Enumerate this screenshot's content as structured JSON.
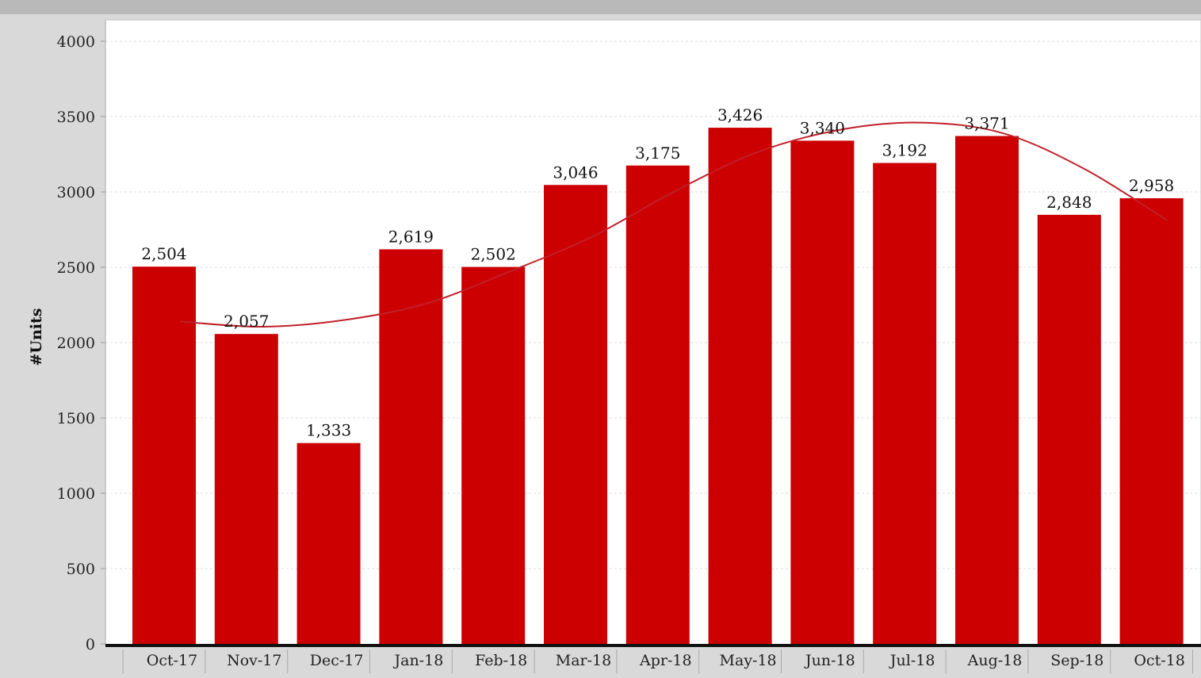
{
  "chart_data": {
    "type": "bar",
    "title": "",
    "xlabel": "",
    "ylabel": "#Units",
    "ylim": [
      0,
      4000
    ],
    "yticks": [
      0,
      500,
      1000,
      1500,
      2000,
      2500,
      3000,
      3500,
      4000
    ],
    "grid": true,
    "categories": [
      "Oct-17",
      "Nov-17",
      "Dec-17",
      "Jan-18",
      "Feb-18",
      "Mar-18",
      "Apr-18",
      "May-18",
      "Jun-18",
      "Jul-18",
      "Aug-18",
      "Sep-18",
      "Oct-18"
    ],
    "values": [
      2504,
      2057,
      1333,
      2619,
      2502,
      3046,
      3175,
      3426,
      3340,
      3192,
      3371,
      2848,
      2958
    ],
    "value_labels": [
      "2,504",
      "2,057",
      "1,333",
      "2,619",
      "2,502",
      "3,046",
      "3,175",
      "3,426",
      "3,340",
      "3,192",
      "3,371",
      "2,848",
      "2,958"
    ],
    "trend_line": {
      "values": [
        2140,
        2105,
        2150,
        2260,
        2470,
        2700,
        3000,
        3260,
        3410,
        3460,
        3390,
        3150,
        2810
      ]
    },
    "colors": {
      "bar": "#cc0000",
      "trend": "#c0202a",
      "grid": "#dddddd",
      "plot_background": "#ffffff"
    }
  }
}
